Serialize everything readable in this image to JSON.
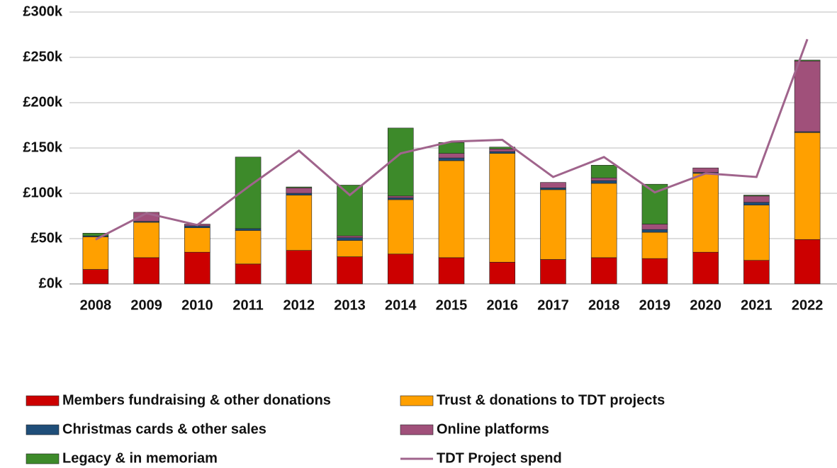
{
  "chart_data": {
    "type": "bar",
    "stacked": true,
    "categories": [
      "2008",
      "2009",
      "2010",
      "2011",
      "2012",
      "2013",
      "2014",
      "2015",
      "2016",
      "2017",
      "2018",
      "2019",
      "2020",
      "2021",
      "2022"
    ],
    "series": [
      {
        "name": "Members fundraising & other donations",
        "color": "#cc0000",
        "values": [
          16,
          29,
          35,
          22,
          37,
          30,
          33,
          29,
          24,
          27,
          29,
          28,
          35,
          26,
          49
        ]
      },
      {
        "name": "Trust & donations to TDT projects",
        "color": "#ffa000",
        "values": [
          36,
          39,
          27,
          37,
          61,
          18,
          60,
          107,
          120,
          77,
          82,
          29,
          87,
          61,
          118
        ]
      },
      {
        "name": "Christmas cards & other sales",
        "color": "#1f4e79",
        "values": [
          1,
          1,
          2,
          2,
          2,
          3,
          2,
          3,
          2,
          2,
          3,
          3,
          1,
          3,
          1
        ]
      },
      {
        "name": "Online platforms",
        "color": "#a0507a",
        "values": [
          0,
          10,
          2,
          0,
          6,
          2,
          2,
          5,
          3,
          6,
          3,
          6,
          5,
          7,
          78
        ]
      },
      {
        "name": "Legacy & in memoriam",
        "color": "#3d8a2a",
        "values": [
          3,
          0,
          0,
          79,
          1,
          56,
          75,
          12,
          2,
          0,
          14,
          44,
          0,
          1,
          1
        ]
      },
      {
        "name": "TDT Project spend",
        "color": "#a0648c",
        "type": "line",
        "values": [
          49,
          78,
          65,
          107,
          147,
          98,
          144,
          157,
          159,
          118,
          140,
          101,
          122,
          118,
          270
        ]
      }
    ],
    "ylim": [
      0,
      300
    ],
    "yticks": [
      {
        "value": 0,
        "label": "£0k"
      },
      {
        "value": 50,
        "label": "£50k"
      },
      {
        "value": 100,
        "label": "£100k"
      },
      {
        "value": 150,
        "label": "£150k"
      },
      {
        "value": 200,
        "label": "£200k"
      },
      {
        "value": 250,
        "label": "£250k"
      },
      {
        "value": 300,
        "label": "£300k"
      }
    ],
    "grid": true,
    "legend": "bottom"
  }
}
